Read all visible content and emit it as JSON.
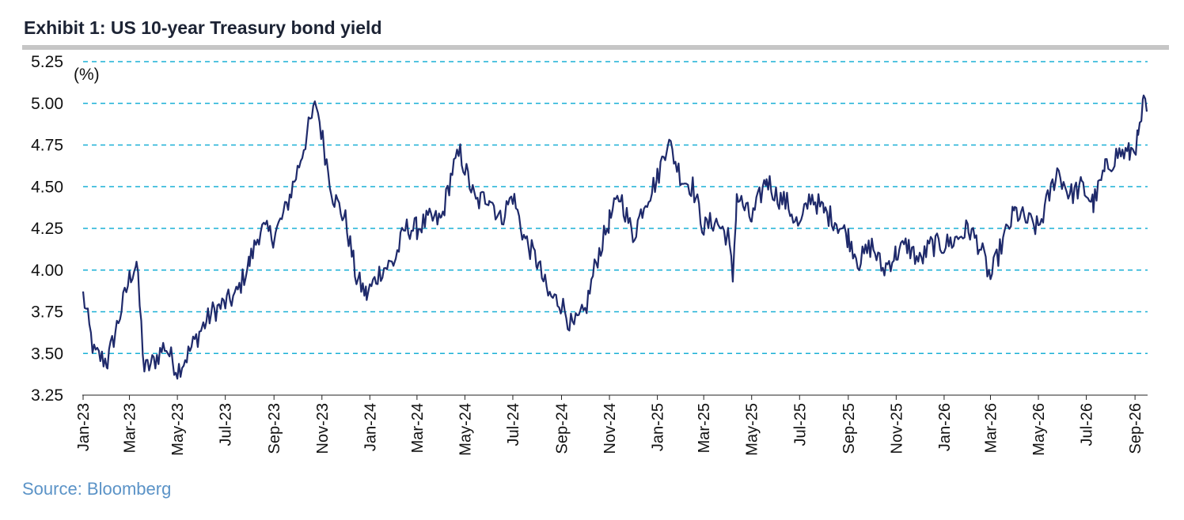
{
  "title": "Exhibit 1: US 10-year Treasury bond yield",
  "source": "Source: Bloomberg",
  "colors": {
    "line": "#1f2a6b",
    "grid": "#1ab0d6",
    "title_rule": "#c6c6c6",
    "source": "#5b93c7"
  },
  "chart_data": {
    "type": "line",
    "unit_label": "(%)",
    "ylim": [
      3.25,
      5.25
    ],
    "yticks": [
      "3.25",
      "3.50",
      "3.75",
      "4.00",
      "4.25",
      "4.50",
      "4.75",
      "5.00",
      "5.25"
    ],
    "xticks": [
      "Jan-23",
      "Mar-23",
      "May-23",
      "Jul-23",
      "Sep-23",
      "Nov-23",
      "Jan-24",
      "Mar-24",
      "May-24",
      "Jul-24",
      "Sep-24",
      "Nov-24",
      "Jan-25",
      "Mar-25",
      "May-25",
      "Jul-25",
      "Sep-25",
      "Nov-25",
      "Jan-26",
      "Mar-26",
      "May-26",
      "Jul-26",
      "Sep-26"
    ],
    "grid": "horizontal dashed",
    "series": [
      {
        "values": [
          [
            "2023-01-01",
            3.85
          ],
          [
            "2023-01-15",
            3.5
          ],
          [
            "2023-02-01",
            3.45
          ],
          [
            "2023-02-15",
            3.7
          ],
          [
            "2023-03-01",
            3.95
          ],
          [
            "2023-03-10",
            4.05
          ],
          [
            "2023-03-20",
            3.4
          ],
          [
            "2023-04-01",
            3.45
          ],
          [
            "2023-04-15",
            3.55
          ],
          [
            "2023-05-01",
            3.4
          ],
          [
            "2023-05-15",
            3.5
          ],
          [
            "2023-06-01",
            3.65
          ],
          [
            "2023-06-15",
            3.75
          ],
          [
            "2023-07-01",
            3.8
          ],
          [
            "2023-07-15",
            3.85
          ],
          [
            "2023-08-01",
            4.05
          ],
          [
            "2023-08-15",
            4.25
          ],
          [
            "2023-09-01",
            4.2
          ],
          [
            "2023-09-15",
            4.35
          ],
          [
            "2023-10-01",
            4.6
          ],
          [
            "2023-10-15",
            4.85
          ],
          [
            "2023-10-25",
            5.0
          ],
          [
            "2023-11-05",
            4.7
          ],
          [
            "2023-11-15",
            4.45
          ],
          [
            "2023-12-01",
            4.3
          ],
          [
            "2023-12-15",
            3.95
          ],
          [
            "2023-12-28",
            3.85
          ],
          [
            "2024-01-15",
            4.0
          ],
          [
            "2024-02-01",
            4.05
          ],
          [
            "2024-02-15",
            4.25
          ],
          [
            "2024-03-01",
            4.25
          ],
          [
            "2024-03-15",
            4.3
          ],
          [
            "2024-04-01",
            4.3
          ],
          [
            "2024-04-15",
            4.6
          ],
          [
            "2024-04-25",
            4.7
          ],
          [
            "2024-05-15",
            4.4
          ],
          [
            "2024-06-01",
            4.45
          ],
          [
            "2024-06-15",
            4.3
          ],
          [
            "2024-07-01",
            4.45
          ],
          [
            "2024-07-15",
            4.2
          ],
          [
            "2024-08-01",
            4.05
          ],
          [
            "2024-08-15",
            3.85
          ],
          [
            "2024-09-01",
            3.8
          ],
          [
            "2024-09-15",
            3.65
          ],
          [
            "2024-10-01",
            3.75
          ],
          [
            "2024-10-15",
            4.05
          ],
          [
            "2024-11-01",
            4.3
          ],
          [
            "2024-11-15",
            4.45
          ],
          [
            "2024-12-01",
            4.2
          ],
          [
            "2024-12-15",
            4.4
          ],
          [
            "2025-01-01",
            4.55
          ],
          [
            "2025-01-14",
            4.78
          ],
          [
            "2025-02-01",
            4.55
          ],
          [
            "2025-02-15",
            4.5
          ],
          [
            "2025-03-01",
            4.25
          ],
          [
            "2025-03-15",
            4.3
          ],
          [
            "2025-04-01",
            4.2
          ],
          [
            "2025-04-07",
            3.95
          ],
          [
            "2025-04-12",
            4.45
          ],
          [
            "2025-05-01",
            4.3
          ],
          [
            "2025-05-20",
            4.55
          ],
          [
            "2025-06-01",
            4.45
          ],
          [
            "2025-06-15",
            4.4
          ],
          [
            "2025-07-01",
            4.25
          ],
          [
            "2025-07-15",
            4.45
          ],
          [
            "2025-08-01",
            4.35
          ],
          [
            "2025-08-15",
            4.3
          ],
          [
            "2025-09-01",
            4.2
          ],
          [
            "2025-09-15",
            4.05
          ],
          [
            "2025-10-01",
            4.15
          ],
          [
            "2025-10-15",
            4.0
          ],
          [
            "2025-11-01",
            4.1
          ],
          [
            "2025-11-15",
            4.15
          ],
          [
            "2025-12-01",
            4.05
          ],
          [
            "2025-12-15",
            4.15
          ],
          [
            "2026-01-01",
            4.15
          ],
          [
            "2026-01-15",
            4.18
          ],
          [
            "2026-02-01",
            4.25
          ],
          [
            "2026-02-15",
            4.15
          ],
          [
            "2026-03-01",
            3.95
          ],
          [
            "2026-03-15",
            4.15
          ],
          [
            "2026-04-01",
            4.35
          ],
          [
            "2026-04-15",
            4.3
          ],
          [
            "2026-05-01",
            4.25
          ],
          [
            "2026-05-15",
            4.45
          ],
          [
            "2026-05-25",
            4.6
          ],
          [
            "2026-06-10",
            4.45
          ],
          [
            "2026-06-25",
            4.5
          ],
          [
            "2026-07-10",
            4.4
          ],
          [
            "2026-07-25",
            4.6
          ],
          [
            "2026-08-10",
            4.7
          ],
          [
            "2026-08-25",
            4.7
          ],
          [
            "2026-09-05",
            4.78
          ],
          [
            "2026-09-12",
            5.0
          ],
          [
            "2026-09-16",
            4.95
          ]
        ]
      }
    ]
  }
}
